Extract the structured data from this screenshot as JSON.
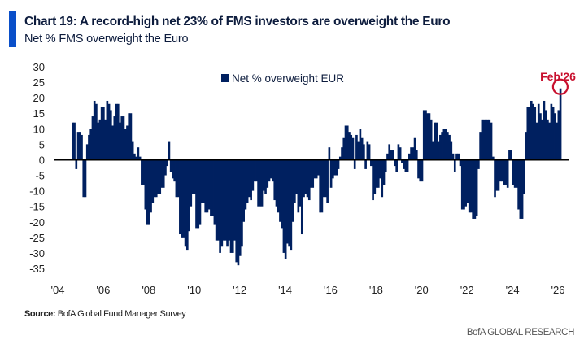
{
  "header": {
    "title": "Chart 19: A record-high net 23% of FMS investors are overweight the Euro",
    "subtitle": "Net % FMS overweight the Euro"
  },
  "footer": {
    "source_label": "Source:",
    "source_text": " BofA Global Fund Manager Survey",
    "brand": "BofA GLOBAL RESEARCH"
  },
  "colors": {
    "bar": "#002060",
    "accent": "#0a4fc9",
    "annotation": "#c8102e",
    "text": "#0d1c3d"
  },
  "chart_data": {
    "type": "bar",
    "title": "Chart 19: A record-high net 23% of FMS investors are overweight the Euro",
    "subtitle": "Net % FMS overweight the Euro",
    "xlabel": "",
    "ylabel": "",
    "ylim": [
      -35,
      30
    ],
    "yticks": [
      30,
      25,
      20,
      15,
      10,
      5,
      0,
      -5,
      -10,
      -15,
      -20,
      -25,
      -30,
      -35
    ],
    "xticks": [
      "'04",
      "'06",
      "'08",
      "'10",
      "'12",
      "'14",
      "'16",
      "'18",
      "'20",
      "'22",
      "'24",
      "'26"
    ],
    "x_range": [
      "Aug 2004",
      "Feb 2026"
    ],
    "legend": {
      "label": "Net % overweight EUR",
      "position": "top-center"
    },
    "annotation": {
      "text": "Feb'26",
      "value": 23
    },
    "grid": false,
    "series": [
      {
        "name": "Net % overweight EUR",
        "frequency": "monthly",
        "values": [
          12,
          12,
          -3,
          9,
          9,
          8,
          -12,
          -12,
          5,
          8,
          10,
          14,
          19,
          18,
          12,
          13,
          17,
          17,
          13,
          19,
          18,
          16,
          11,
          14,
          18,
          18,
          12,
          14,
          14,
          10,
          11,
          15,
          15,
          6,
          2,
          1,
          4,
          1,
          -8,
          -8,
          -16,
          -21,
          -21,
          -17,
          -14,
          -12,
          -12,
          -11,
          -11,
          -9,
          -9,
          -5,
          -2,
          6,
          -4,
          -6,
          -7,
          -12,
          -12,
          -24,
          -25,
          -25,
          -28,
          -29,
          -23,
          -15,
          -11,
          -11,
          -22,
          -22,
          -21,
          -14,
          -14,
          -17,
          -17,
          -16,
          -18,
          -18,
          -21,
          -26,
          -26,
          -30,
          -28,
          -26,
          -26,
          -28,
          -26,
          -30,
          -30,
          -26,
          -33,
          -34,
          -31,
          -28,
          -20,
          -16,
          -14,
          -12,
          -13,
          -10,
          -7,
          -7,
          -15,
          -15,
          -15,
          -10,
          -11,
          -9,
          -7,
          -6,
          -7,
          -13,
          -15,
          -17,
          -20,
          -22,
          -30,
          -32,
          -27,
          -28,
          -29,
          -20,
          -14,
          -11,
          -17,
          -15,
          -24,
          -12,
          -11,
          -12,
          -13,
          -9,
          -9,
          -6,
          -6,
          -5,
          -17,
          -17,
          -12,
          -12,
          -14,
          4,
          -9,
          -6,
          -5,
          -5,
          -3,
          1,
          4,
          7,
          11,
          11,
          9,
          8,
          7,
          -3,
          8,
          6,
          10,
          7,
          5,
          -3,
          6,
          5,
          -2,
          -13,
          -11,
          -9,
          -9,
          -6,
          -12,
          -8,
          -4,
          2,
          5,
          3,
          3,
          -2,
          -4,
          5,
          4,
          -1,
          -3,
          -4,
          -4,
          2,
          4,
          4,
          7,
          3,
          -6,
          -7,
          -7,
          16,
          16,
          15,
          15,
          13,
          6,
          12,
          12,
          6,
          8,
          9,
          10,
          10,
          9,
          8,
          6,
          2,
          -4,
          2,
          2,
          -2,
          -16,
          -16,
          -15,
          -14,
          -17,
          -17,
          -19,
          -19,
          -18,
          -3,
          9,
          13,
          13,
          13,
          13,
          13,
          12,
          1,
          -12,
          -10,
          -10,
          -7,
          -7,
          -8,
          -8,
          -9,
          3,
          3,
          -8,
          -9,
          -9,
          -16,
          -19,
          -19,
          -11,
          9,
          17,
          17,
          19,
          18,
          17,
          12,
          18,
          15,
          13,
          19,
          16,
          13,
          12,
          18,
          17,
          15,
          12,
          16,
          23
        ]
      }
    ]
  }
}
